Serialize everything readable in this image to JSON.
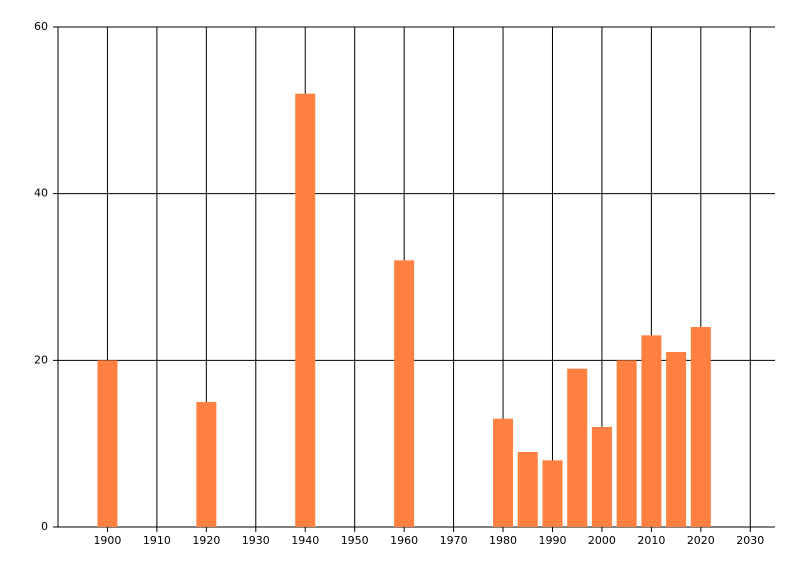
{
  "chart_data": {
    "type": "bar",
    "x": [
      1900,
      1920,
      1940,
      1960,
      1980,
      1985,
      1990,
      1995,
      2000,
      2005,
      2010,
      2015,
      2020
    ],
    "values": [
      20,
      15,
      52,
      32,
      13,
      9,
      8,
      19,
      12,
      20,
      23,
      21,
      24
    ],
    "color": "#ff8040",
    "xlim": [
      1890,
      2035
    ],
    "xticks": [
      1900,
      1910,
      1920,
      1930,
      1940,
      1950,
      1960,
      1970,
      1980,
      1990,
      2000,
      2010,
      2020,
      2030
    ],
    "ylim": [
      0,
      60
    ],
    "yticks": [
      0,
      20,
      40,
      60
    ],
    "grid": true
  }
}
